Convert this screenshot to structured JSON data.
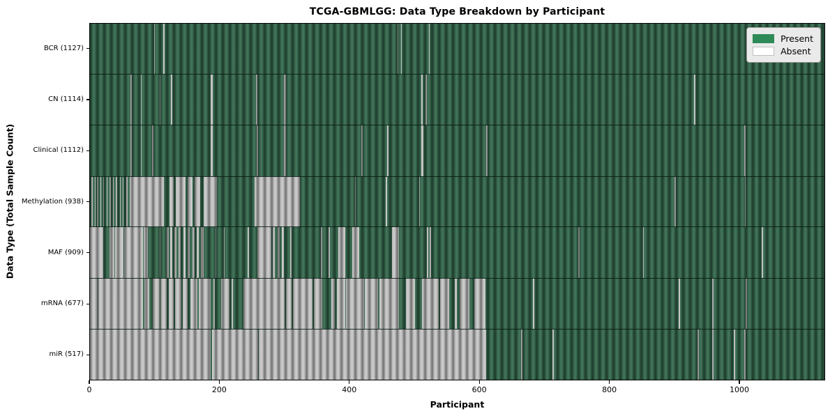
{
  "title": "TCGA-GBMLGG: Data Type Breakdown by Participant",
  "colors": {
    "present": "#35684d",
    "absent": "#c6c6c6",
    "legend_present": "#2e8b57",
    "legend_absent": "#ffffff"
  },
  "legend": {
    "items": [
      {
        "label": "Present",
        "color": "#2e8b57"
      },
      {
        "label": "Absent",
        "color": "#ffffff"
      }
    ]
  },
  "chart_data": {
    "type": "heatmap",
    "title": "TCGA-GBMLGG: Data Type Breakdown by Participant",
    "xlabel": "Participant",
    "ylabel": "Data Type (Total Sample Count)",
    "x_ticks": [
      0,
      200,
      400,
      600,
      800,
      1000
    ],
    "x_max": 1132,
    "grid": false,
    "legend_position": "upper right",
    "cell_states": {
      "present_color": "#2e8b57",
      "absent_color": "#ffffff"
    },
    "rows": [
      {
        "label": "BCR (1127)",
        "data_type": "BCR",
        "count": 1127,
        "absent_segments": [
          [
            99,
            100.5
          ],
          [
            113,
            114.5
          ],
          [
            474,
            475.5
          ],
          [
            479,
            480.5
          ],
          [
            522,
            523.5
          ]
        ]
      },
      {
        "label": "CN (1114)",
        "data_type": "CN",
        "count": 1114,
        "absent_segments": [
          [
            62,
            64
          ],
          [
            78,
            80
          ],
          [
            107,
            109
          ],
          [
            125,
            127
          ],
          [
            186,
            189
          ],
          [
            256,
            258
          ],
          [
            299,
            302
          ],
          [
            511,
            513
          ],
          [
            517,
            519
          ],
          [
            931,
            933
          ]
        ]
      },
      {
        "label": "Clinical (1112)",
        "data_type": "Clinical",
        "count": 1112,
        "absent_segments": [
          [
            62,
            64
          ],
          [
            78,
            80
          ],
          [
            96,
            98
          ],
          [
            186,
            189
          ],
          [
            257,
            259
          ],
          [
            299,
            302
          ],
          [
            418,
            420
          ],
          [
            458,
            460
          ],
          [
            511,
            514
          ],
          [
            611,
            613
          ],
          [
            1008,
            1010
          ]
        ]
      },
      {
        "label": "Methylation (938)",
        "data_type": "Methylation",
        "count": 938,
        "absent_segments": [
          [
            2,
            4
          ],
          [
            7,
            8
          ],
          [
            11,
            13
          ],
          [
            16,
            17
          ],
          [
            20,
            22
          ],
          [
            26,
            27
          ],
          [
            30,
            32
          ],
          [
            36,
            37
          ],
          [
            40,
            42
          ],
          [
            46,
            47
          ],
          [
            50,
            52
          ],
          [
            56,
            58
          ],
          [
            61,
            114
          ],
          [
            123,
            129
          ],
          [
            132,
            147
          ],
          [
            150,
            158
          ],
          [
            161,
            170
          ],
          [
            175,
            196
          ],
          [
            254,
            324
          ],
          [
            408,
            410
          ],
          [
            456,
            458
          ],
          [
            507,
            509
          ],
          [
            901,
            903
          ],
          [
            1009,
            1011
          ]
        ]
      },
      {
        "label": "MAF (909)",
        "data_type": "MAF",
        "count": 909,
        "absent_segments": [
          [
            0,
            20
          ],
          [
            30,
            38
          ],
          [
            39,
            52
          ],
          [
            53,
            82
          ],
          [
            83,
            89
          ],
          [
            107,
            109
          ],
          [
            118,
            121
          ],
          [
            124,
            127
          ],
          [
            130,
            133
          ],
          [
            137,
            140
          ],
          [
            144,
            147
          ],
          [
            151,
            154
          ],
          [
            158,
            161
          ],
          [
            165,
            168
          ],
          [
            171,
            175
          ],
          [
            193,
            195
          ],
          [
            206,
            208
          ],
          [
            243,
            245
          ],
          [
            258,
            279
          ],
          [
            282,
            285
          ],
          [
            289,
            292
          ],
          [
            296,
            299
          ],
          [
            309,
            311
          ],
          [
            356,
            358
          ],
          [
            368,
            370
          ],
          [
            383,
            393
          ],
          [
            404,
            415
          ],
          [
            465,
            476
          ],
          [
            519,
            521
          ],
          [
            524,
            526
          ],
          [
            753,
            755
          ],
          [
            852,
            854
          ],
          [
            1035,
            1037
          ]
        ]
      },
      {
        "label": "mRNA (677)",
        "data_type": "mRNA",
        "count": 677,
        "absent_segments": [
          [
            0,
            12
          ],
          [
            13,
            82
          ],
          [
            84,
            91
          ],
          [
            97,
            107
          ],
          [
            109,
            118
          ],
          [
            122,
            129
          ],
          [
            131,
            141
          ],
          [
            143,
            150
          ],
          [
            155,
            166
          ],
          [
            168,
            186
          ],
          [
            190,
            192
          ],
          [
            202,
            215
          ],
          [
            218,
            220
          ],
          [
            236,
            300
          ],
          [
            302,
            311
          ],
          [
            313,
            343
          ],
          [
            345,
            358
          ],
          [
            372,
            377
          ],
          [
            381,
            393
          ],
          [
            395,
            422
          ],
          [
            424,
            444
          ],
          [
            446,
            476
          ],
          [
            487,
            501
          ],
          [
            512,
            538
          ],
          [
            540,
            554
          ],
          [
            562,
            565
          ],
          [
            570,
            585
          ],
          [
            592,
            610
          ],
          [
            683,
            685
          ],
          [
            907,
            909
          ],
          [
            959,
            961
          ],
          [
            1011,
            1013
          ]
        ]
      },
      {
        "label": "miR (517)",
        "data_type": "miR",
        "count": 517,
        "absent_segments": [
          [
            0,
            186
          ],
          [
            188,
            259
          ],
          [
            260,
            611
          ],
          [
            664,
            666
          ],
          [
            713,
            715
          ],
          [
            936,
            938
          ],
          [
            959,
            961
          ],
          [
            992,
            994
          ],
          [
            1008,
            1010
          ]
        ]
      }
    ]
  }
}
